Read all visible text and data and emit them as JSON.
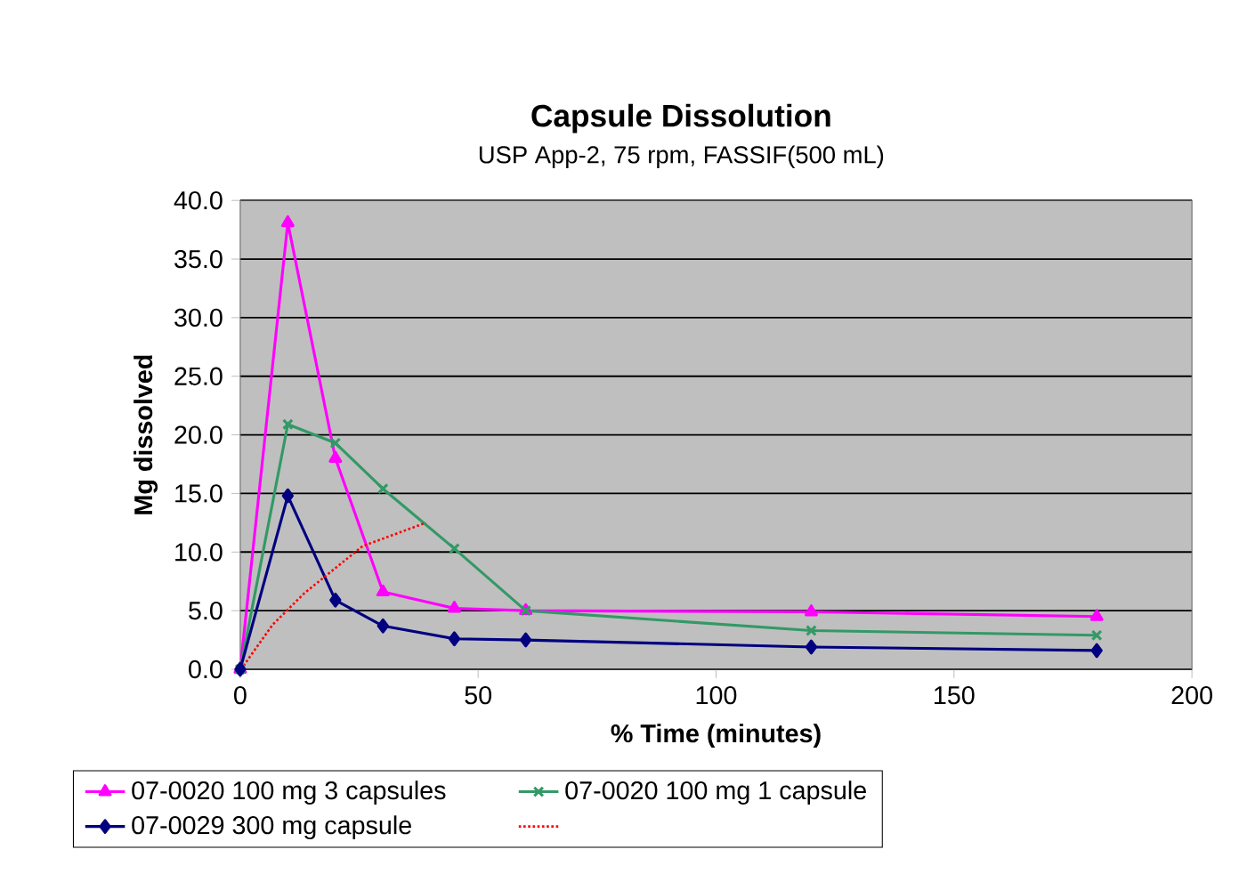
{
  "chart_data": {
    "type": "line",
    "title": "Capsule Dissolution",
    "subtitle": "USP App-2, 75 rpm, FASSIF(500 mL)",
    "xlabel": "% Time (minutes)",
    "ylabel": "Mg dissolved",
    "x": [
      0,
      10,
      20,
      30,
      45,
      60,
      120,
      180
    ],
    "series": [
      {
        "name": "07-0020 100 mg 3 capsules",
        "color": "#ff00ff",
        "marker": "triangle",
        "values": [
          0,
          38.1,
          18.0,
          6.6,
          5.2,
          5.0,
          4.9,
          4.5
        ]
      },
      {
        "name": "07-0020 100 mg 1 capsule",
        "color": "#339966",
        "marker": "cross",
        "values": [
          0,
          20.9,
          19.3,
          15.4,
          10.3,
          5.0,
          3.3,
          2.9
        ]
      },
      {
        "name": "07-0029 300 mg capsule",
        "color": "#000080",
        "marker": "diamond",
        "values": [
          0,
          14.8,
          5.9,
          3.7,
          2.6,
          2.5,
          1.9,
          1.6
        ]
      },
      {
        "color": "#ff0000",
        "marker": "none",
        "line_style": "dotted",
        "x": [
          0.7,
          6.8,
          13.5,
          25.7,
          39
        ],
        "values": [
          0.3,
          3.8,
          6.5,
          10.5,
          12.5
        ]
      }
    ],
    "xlim": [
      0,
      200
    ],
    "xticks": [
      0,
      50,
      100,
      150,
      200
    ],
    "ylim": [
      0,
      40
    ],
    "yticks": [
      {
        "value": 0,
        "label": "0.0"
      },
      {
        "value": 5,
        "label": "5.0"
      },
      {
        "value": 10,
        "label": "10.0"
      },
      {
        "value": 15,
        "label": "15.0"
      },
      {
        "value": 20,
        "label": "20.0"
      },
      {
        "value": 25,
        "label": "25.0"
      },
      {
        "value": 30,
        "label": "30.0"
      },
      {
        "value": 35,
        "label": "35.0"
      },
      {
        "value": 40,
        "label": "40.0"
      }
    ],
    "grid": "y",
    "legend": "bottom",
    "line_style": "solid"
  }
}
